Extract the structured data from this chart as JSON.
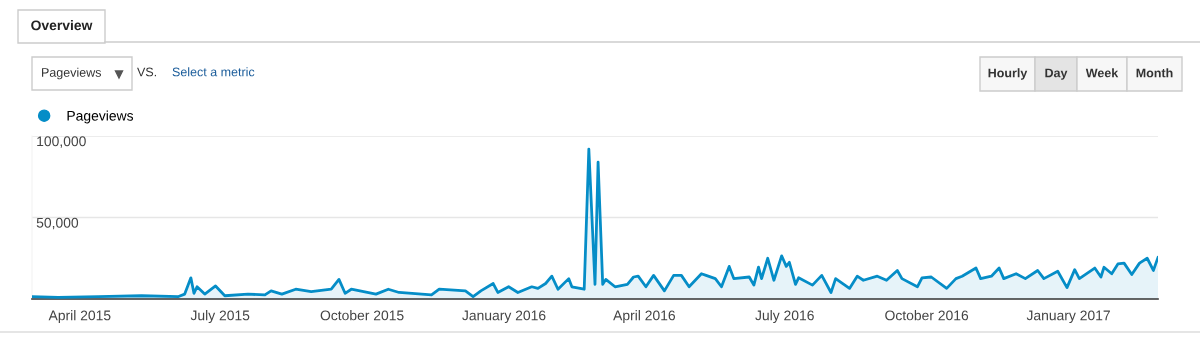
{
  "chart_data": {
    "type": "area",
    "annotations": [
      "Overview",
      "Pageviews",
      "VS.",
      "Select a metric",
      "Hourly",
      "Day",
      "Week",
      "Month"
    ],
    "x": [
      "2015-03-01",
      "2015-03-18",
      "2015-04-13",
      "2015-05-11",
      "2015-06-04",
      "2015-06-08",
      "2015-06-12",
      "2015-06-14",
      "2015-06-16",
      "2015-06-21",
      "2015-06-28",
      "2015-07-04",
      "2015-07-19",
      "2015-07-30",
      "2015-08-03",
      "2015-08-10",
      "2015-08-19",
      "2015-08-29",
      "2015-09-11",
      "2015-09-16",
      "2015-09-20",
      "2015-09-24",
      "2015-10-10",
      "2015-10-18",
      "2015-10-25",
      "2015-11-15",
      "2015-11-20",
      "2015-12-07",
      "2015-12-12",
      "2015-12-17",
      "2015-12-25",
      "2015-12-28",
      "2016-01-04",
      "2016-01-10",
      "2016-01-19",
      "2016-01-23",
      "2016-01-28",
      "2016-02-01",
      "2016-02-05",
      "2016-02-12",
      "2016-02-14",
      "2016-02-22",
      "2016-02-25",
      "2016-02-29",
      "2016-03-02",
      "2016-03-05",
      "2016-03-07",
      "2016-03-13",
      "2016-03-21",
      "2016-03-25",
      "2016-03-28",
      "2016-04-02",
      "2016-04-07",
      "2016-04-14",
      "2016-04-20",
      "2016-04-25",
      "2016-04-30",
      "2016-05-08",
      "2016-05-11",
      "2016-05-17",
      "2016-05-21",
      "2016-05-26",
      "2016-05-29",
      "2016-06-08",
      "2016-06-11",
      "2016-06-14",
      "2016-06-16",
      "2016-06-20",
      "2016-06-24",
      "2016-06-29",
      "2016-07-02",
      "2016-07-04",
      "2016-07-08",
      "2016-07-10",
      "2016-07-19",
      "2016-07-25",
      "2016-07-31",
      "2016-08-03",
      "2016-08-12",
      "2016-08-17",
      "2016-08-21",
      "2016-08-30",
      "2016-09-05",
      "2016-09-12",
      "2016-09-15",
      "2016-09-25",
      "2016-09-28",
      "2016-10-04",
      "2016-10-14",
      "2016-10-20",
      "2016-10-24",
      "2016-11-02",
      "2016-11-05",
      "2016-11-12",
      "2016-11-17",
      "2016-11-20",
      "2016-11-28",
      "2016-12-04",
      "2016-12-12",
      "2016-12-16",
      "2016-12-25",
      "2016-12-31",
      "2017-01-05",
      "2017-01-08",
      "2017-01-18",
      "2017-01-22",
      "2017-01-24",
      "2017-01-29",
      "2017-02-02",
      "2017-02-06",
      "2017-02-11",
      "2017-02-16",
      "2017-02-21",
      "2017-02-25",
      "2017-02-28"
    ],
    "series": [
      {
        "name": "Pageviews",
        "color": "#058dc7",
        "values": [
          1500,
          1000,
          1500,
          2000,
          1500,
          3000,
          13000,
          3500,
          7500,
          3000,
          8000,
          2000,
          3000,
          2500,
          5000,
          3000,
          6000,
          4500,
          6000,
          12000,
          3500,
          6000,
          3000,
          6000,
          4000,
          2500,
          6000,
          5000,
          1500,
          5000,
          9500,
          4000,
          7500,
          4000,
          7500,
          6500,
          9500,
          14000,
          6000,
          12500,
          7500,
          6000,
          92000,
          9000,
          84000,
          9000,
          12000,
          7500,
          9000,
          13500,
          14000,
          7500,
          14500,
          5000,
          14500,
          14500,
          7500,
          15500,
          14500,
          12500,
          7500,
          20000,
          12500,
          13500,
          8500,
          19500,
          12500,
          25000,
          11500,
          26500,
          20000,
          22500,
          9000,
          13000,
          8500,
          14500,
          4000,
          12500,
          6500,
          14000,
          11500,
          14000,
          11500,
          17500,
          12500,
          7500,
          13000,
          13500,
          6500,
          12500,
          14000,
          19000,
          12500,
          14000,
          19000,
          12500,
          15500,
          12500,
          17500,
          12500,
          17000,
          7000,
          18000,
          12500,
          19000,
          13500,
          19500,
          15500,
          21500,
          22000,
          15000,
          22000,
          25000,
          17500,
          25500
        ]
      }
    ],
    "xlim": [
      "2015-03-01",
      "2017-02-28"
    ],
    "xticks": [
      {
        "value": "2015-04-01",
        "label": "April 2015"
      },
      {
        "value": "2015-07-01",
        "label": "July 2015"
      },
      {
        "value": "2015-10-01",
        "label": "October 2015"
      },
      {
        "value": "2016-01-01",
        "label": "January 2016"
      },
      {
        "value": "2016-04-01",
        "label": "April 2016"
      },
      {
        "value": "2016-07-01",
        "label": "July 2016"
      },
      {
        "value": "2016-10-01",
        "label": "October 2016"
      },
      {
        "value": "2017-01-01",
        "label": "January 2017"
      }
    ],
    "ylim": [
      0,
      100000
    ],
    "yticks": [
      {
        "value": 50000,
        "label": "50,000"
      },
      {
        "value": 100000,
        "label": "100,000"
      }
    ],
    "grid": "y",
    "legend": "top left",
    "marker": "none",
    "line_style": "solid"
  }
}
